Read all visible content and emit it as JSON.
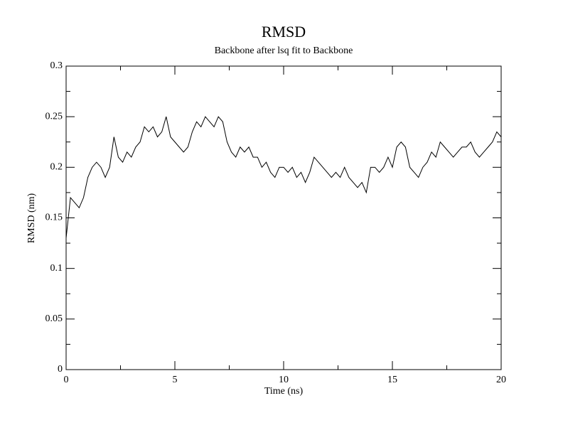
{
  "chart_data": {
    "type": "line",
    "title": "RMSD",
    "subtitle": "Backbone after lsq fit to Backbone",
    "xlabel": "Time (ns)",
    "ylabel": "RMSD (nm)",
    "x": [
      0,
      0.2,
      0.4,
      0.6,
      0.8,
      1,
      1.2,
      1.4,
      1.6,
      1.8,
      2,
      2.2,
      2.4,
      2.6,
      2.8,
      3,
      3.2,
      3.4,
      3.6,
      3.8,
      4,
      4.2,
      4.4,
      4.6,
      4.8,
      5,
      5.2,
      5.4,
      5.6,
      5.8,
      6,
      6.2,
      6.4,
      6.6,
      6.8,
      7,
      7.2,
      7.4,
      7.6,
      7.8,
      8,
      8.2,
      8.4,
      8.6,
      8.8,
      9,
      9.2,
      9.4,
      9.6,
      9.8,
      10,
      10.2,
      10.4,
      10.6,
      10.8,
      11,
      11.2,
      11.4,
      11.6,
      11.8,
      12,
      12.2,
      12.4,
      12.6,
      12.8,
      13,
      13.2,
      13.4,
      13.6,
      13.8,
      14,
      14.2,
      14.4,
      14.6,
      14.8,
      15,
      15.2,
      15.4,
      15.6,
      15.8,
      16,
      16.2,
      16.4,
      16.6,
      16.8,
      17,
      17.2,
      17.4,
      17.6,
      17.8,
      18,
      18.2,
      18.4,
      18.6,
      18.8,
      19,
      19.2,
      19.4,
      19.6,
      19.8,
      20
    ],
    "series": [
      {
        "color": "#000000",
        "values": [
          0.13,
          0.17,
          0.165,
          0.16,
          0.17,
          0.19,
          0.2,
          0.205,
          0.2,
          0.19,
          0.2,
          0.23,
          0.21,
          0.205,
          0.215,
          0.21,
          0.22,
          0.225,
          0.24,
          0.235,
          0.24,
          0.23,
          0.235,
          0.25,
          0.23,
          0.225,
          0.22,
          0.215,
          0.22,
          0.235,
          0.245,
          0.24,
          0.25,
          0.245,
          0.24,
          0.25,
          0.245,
          0.225,
          0.215,
          0.21,
          0.22,
          0.215,
          0.22,
          0.21,
          0.21,
          0.2,
          0.205,
          0.195,
          0.19,
          0.2,
          0.2,
          0.195,
          0.2,
          0.19,
          0.195,
          0.185,
          0.195,
          0.21,
          0.205,
          0.2,
          0.195,
          0.19,
          0.195,
          0.19,
          0.2,
          0.19,
          0.185,
          0.18,
          0.185,
          0.175,
          0.2,
          0.2,
          0.195,
          0.2,
          0.21,
          0.2,
          0.22,
          0.225,
          0.22,
          0.2,
          0.195,
          0.19,
          0.2,
          0.205,
          0.215,
          0.21,
          0.225,
          0.22,
          0.215,
          0.21,
          0.215,
          0.22,
          0.22,
          0.225,
          0.215,
          0.21,
          0.215,
          0.22,
          0.225,
          0.235,
          0.23
        ]
      }
    ],
    "xlim": [
      0,
      20
    ],
    "xticks": [
      0,
      5,
      10,
      15,
      20
    ],
    "xminorticks": [
      2.5,
      7.5,
      12.5,
      17.5
    ],
    "ylim": [
      0,
      0.3
    ],
    "yticks": [
      0,
      0.05,
      0.1,
      0.15,
      0.2,
      0.25,
      0.3
    ],
    "yminorticks": [
      0.025,
      0.075,
      0.125,
      0.175,
      0.225,
      0.275
    ]
  }
}
